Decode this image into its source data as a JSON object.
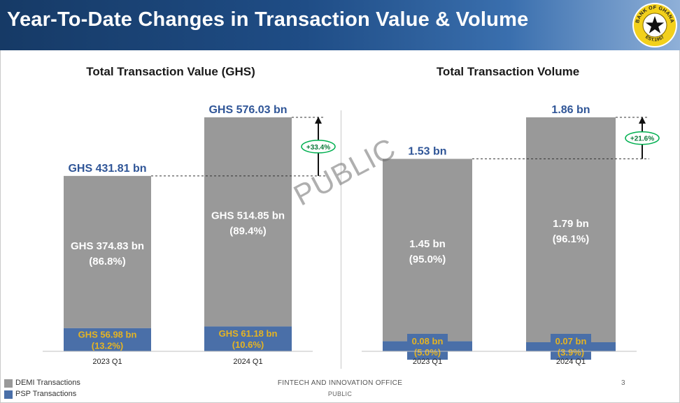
{
  "header": {
    "title": "Year-To-Date Changes in Transaction Value & Volume"
  },
  "logo": {
    "top_text": "BANK OF GHANA",
    "bottom_text": "EST.1957"
  },
  "colors": {
    "header_bg": "#1f4d86",
    "demi": "#999999",
    "psp": "#4a6fa8",
    "total_label": "#2f5597",
    "psp_label": "#e6b422",
    "growth": "#00b050"
  },
  "watermark": "PUBLIC",
  "chart_data": [
    {
      "type": "bar",
      "title": "Total Transaction Value (GHS)",
      "categories": [
        "2023 Q1",
        "2024 Q1"
      ],
      "totals": [
        431.81,
        576.03
      ],
      "total_labels": [
        "GHS 431.81 bn",
        "GHS 576.03 bn"
      ],
      "series": [
        {
          "name": "DEMI Transactions",
          "values": [
            374.83,
            514.85
          ],
          "labels": [
            "GHS 374.83 bn",
            "GHS 514.85 bn"
          ],
          "shares": [
            "(86.8%)",
            "(89.4%)"
          ]
        },
        {
          "name": "PSP Transactions",
          "values": [
            56.98,
            61.18
          ],
          "labels": [
            "GHS 56.98 bn",
            "GHS 61.18 bn"
          ],
          "shares": [
            "(13.2%)",
            "(10.6%)"
          ]
        }
      ],
      "growth_label": "+33.4%"
    },
    {
      "type": "bar",
      "title": "Total Transaction Volume",
      "categories": [
        "2023 Q1",
        "2024 Q1"
      ],
      "totals": [
        1.53,
        1.86
      ],
      "total_labels": [
        "1.53 bn",
        "1.86 bn"
      ],
      "series": [
        {
          "name": "DEMI Transactions",
          "values": [
            1.45,
            1.79
          ],
          "labels": [
            "1.45 bn",
            "1.79 bn"
          ],
          "shares": [
            "(95.0%)",
            "(96.1%)"
          ]
        },
        {
          "name": "PSP Transactions",
          "values": [
            0.08,
            0.07
          ],
          "labels": [
            "0.08 bn",
            "0.07 bn"
          ],
          "shares": [
            "(5.0%)",
            "(3.9%)"
          ]
        }
      ],
      "growth_label": "+21.6%"
    }
  ],
  "legend": {
    "items": [
      "DEMI Transactions",
      "PSP Transactions"
    ]
  },
  "footer": {
    "office": "FINTECH AND INNOVATION OFFICE",
    "classification": "PUBLIC",
    "page_number": "3"
  }
}
